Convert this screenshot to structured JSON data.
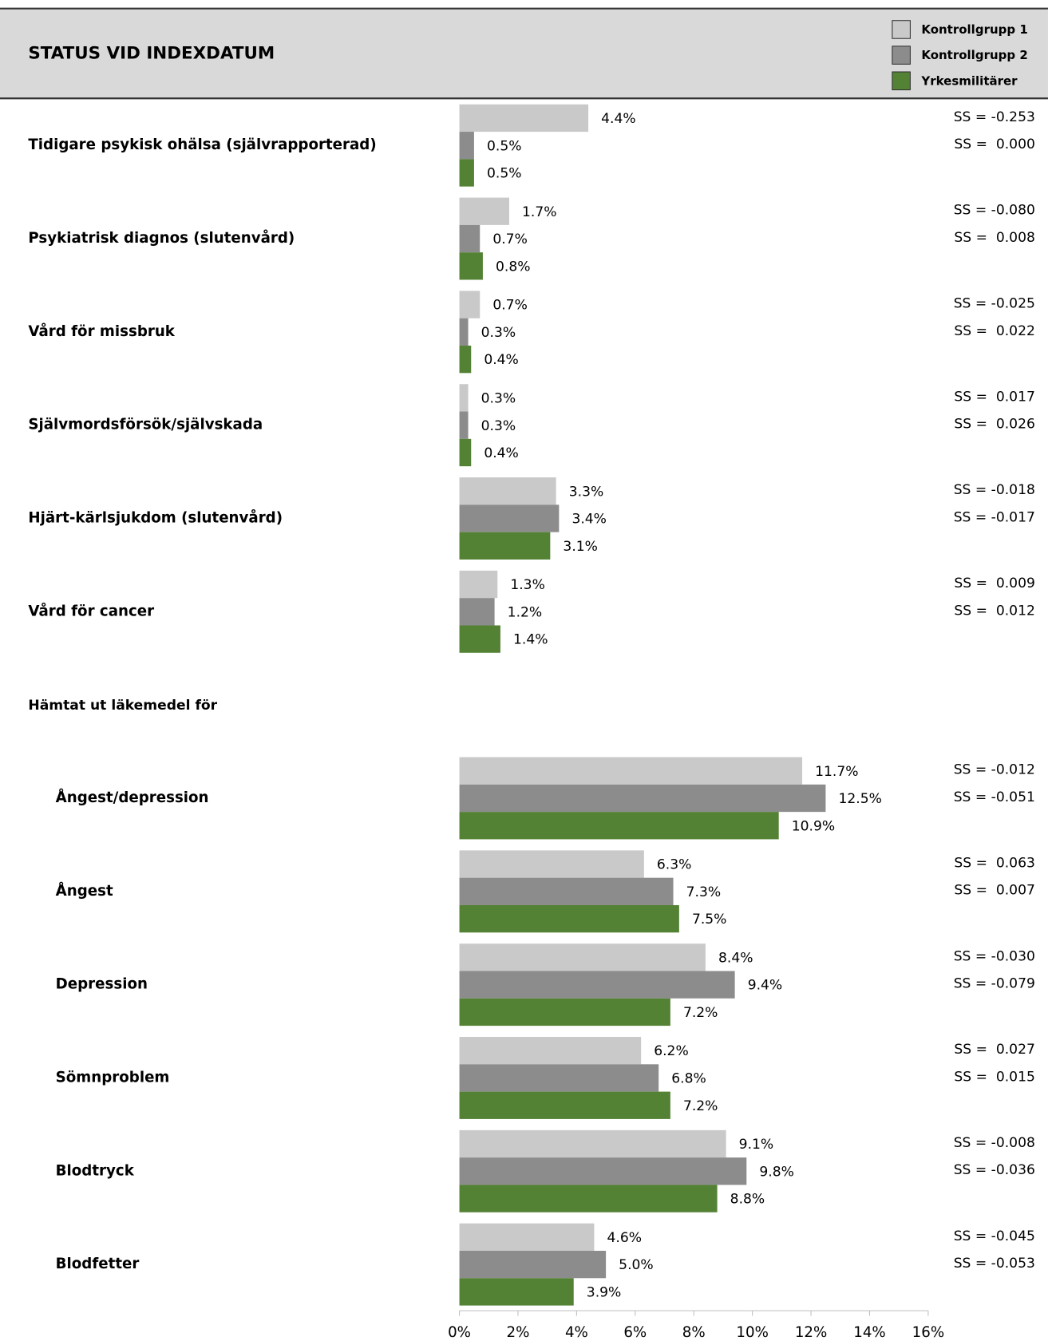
{
  "chart_data": {
    "type": "bar",
    "orientation": "horizontal",
    "title": "STATUS VID INDEXDATUM",
    "subheading": "Hämtat ut läkemedel för",
    "categories": [
      "Tidigare psykisk ohälsa (självrapporterad)",
      "Psykiatrisk diagnos (slutenvård)",
      "Vård för missbruk",
      "Självmordsförsök/självskada",
      "Hjärt-kärlsjukdom (slutenvård)",
      "Vård för cancer",
      "Ångest/depression",
      "Ångest",
      "Depression",
      "Sömnproblem",
      "Blodtryck",
      "Blodfetter"
    ],
    "series": [
      {
        "name": "Kontrollgrupp 1",
        "color": "#c9c9c9",
        "values": [
          4.4,
          1.7,
          0.7,
          0.3,
          3.3,
          1.3,
          11.7,
          6.3,
          8.4,
          6.2,
          9.1,
          4.6
        ],
        "value_labels": [
          "4.4%",
          "1.7%",
          "0.7%",
          "0.3%",
          "3.3%",
          "1.3%",
          "11.7%",
          "6.3%",
          "8.4%",
          "6.2%",
          "9.1%",
          "4.6%"
        ]
      },
      {
        "name": "Kontrollgrupp 2",
        "color": "#8c8c8c",
        "values": [
          0.5,
          0.7,
          0.3,
          0.3,
          3.4,
          1.2,
          12.5,
          7.3,
          9.4,
          6.8,
          9.8,
          5.0
        ],
        "value_labels": [
          "0.5%",
          "0.7%",
          "0.3%",
          "0.3%",
          "3.4%",
          "1.2%",
          "12.5%",
          "7.3%",
          "9.4%",
          "6.8%",
          "9.8%",
          "5.0%"
        ]
      },
      {
        "name": "Yrkesmilitärer",
        "color": "#548235",
        "values": [
          0.5,
          0.8,
          0.4,
          0.4,
          3.1,
          1.4,
          10.9,
          7.5,
          7.2,
          7.2,
          8.8,
          3.9
        ],
        "value_labels": [
          "0.5%",
          "0.8%",
          "0.4%",
          "0.4%",
          "3.1%",
          "1.4%",
          "10.9%",
          "7.5%",
          "7.2%",
          "7.2%",
          "8.8%",
          "3.9%"
        ]
      }
    ],
    "annotations": [
      [
        "SS = -0.253",
        "SS =  0.000"
      ],
      [
        "SS = -0.080",
        "SS =  0.008"
      ],
      [
        "SS = -0.025",
        "SS =  0.022"
      ],
      [
        "SS =  0.017",
        "SS =  0.026"
      ],
      [
        "SS = -0.018",
        "SS = -0.017"
      ],
      [
        "SS =  0.009",
        "SS =  0.012"
      ],
      [
        "SS = -0.012",
        "SS = -0.051"
      ],
      [
        "SS =  0.063",
        "SS =  0.007"
      ],
      [
        "SS = -0.030",
        "SS = -0.079"
      ],
      [
        "SS =  0.027",
        "SS =  0.015"
      ],
      [
        "SS = -0.008",
        "SS = -0.036"
      ],
      [
        "SS = -0.045",
        "SS = -0.053"
      ]
    ],
    "xlim": [
      0,
      16
    ],
    "xticks": [
      {
        "value": 0,
        "label": "0%"
      },
      {
        "value": 2,
        "label": "2%"
      },
      {
        "value": 4,
        "label": "4%"
      },
      {
        "value": 6,
        "label": "6%"
      },
      {
        "value": 8,
        "label": "8%"
      },
      {
        "value": 10,
        "label": "10%"
      },
      {
        "value": 12,
        "label": "12%"
      },
      {
        "value": 14,
        "label": "14%"
      },
      {
        "value": 16,
        "label": "16%"
      }
    ],
    "legend": "top-right"
  }
}
